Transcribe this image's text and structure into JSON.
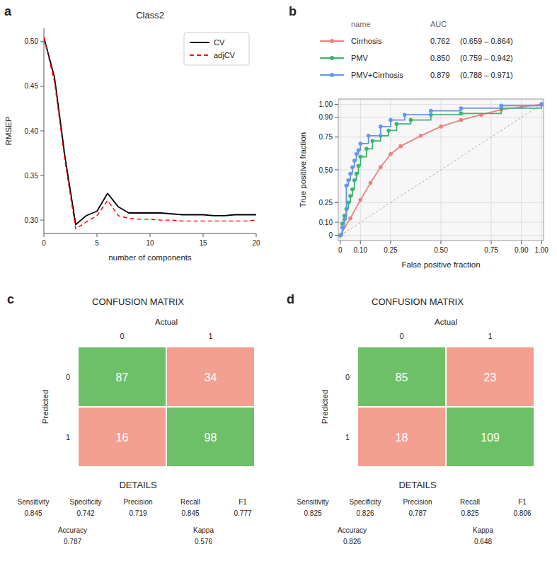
{
  "chart_data": [
    {
      "type": "line",
      "title": "Class2",
      "annotations": [
        "a"
      ],
      "x_label": "number of components",
      "y_label": "RMSEP",
      "x": [
        0,
        1,
        2,
        3,
        4,
        5,
        6,
        7,
        8,
        9,
        10,
        11,
        12,
        13,
        14,
        15,
        16,
        17,
        18,
        19,
        20
      ],
      "series": [
        {
          "name": "CV",
          "color": "black",
          "line_style": "solid",
          "values": [
            0.505,
            0.46,
            0.37,
            0.295,
            0.305,
            0.31,
            0.33,
            0.315,
            0.308,
            0.308,
            0.308,
            0.308,
            0.307,
            0.306,
            0.306,
            0.306,
            0.305,
            0.305,
            0.306,
            0.306,
            0.306
          ]
        },
        {
          "name": "adjCV",
          "color": "red",
          "line_style": "dashed",
          "values": [
            0.505,
            0.455,
            0.365,
            0.29,
            0.298,
            0.305,
            0.322,
            0.305,
            0.302,
            0.301,
            0.301,
            0.3,
            0.3,
            0.299,
            0.299,
            0.299,
            0.299,
            0.299,
            0.299,
            0.299,
            0.3
          ]
        }
      ],
      "xlim": [
        0,
        20
      ],
      "xticks": [
        0,
        5,
        10,
        15,
        20
      ],
      "ylim": [
        0.285,
        0.515
      ],
      "yticks": [
        {
          "value": 0.3,
          "label": "0.30"
        },
        0.35,
        {
          "value": 0.4,
          "label": "0.40"
        },
        0.45,
        {
          "value": 0.5,
          "label": "0.50"
        }
      ],
      "grid": false,
      "legend": "upper-right"
    },
    {
      "type": "line",
      "annotations": [
        "b"
      ],
      "x_label": "False positive fraction",
      "y_label": "True positive fraction",
      "legend": "top",
      "legend_headers": [
        "name",
        "AUC"
      ],
      "series": [
        {
          "name": "Cirrhosis",
          "color": "#F08080",
          "line_style": "solid",
          "marker": "circle",
          "auc": "0.762",
          "ci": "(0.659 – 0.864)",
          "x": [
            0.0,
            0.05,
            0.1,
            0.15,
            0.2,
            0.25,
            0.3,
            0.4,
            0.5,
            0.6,
            0.7,
            0.8,
            0.9,
            1.0
          ],
          "values": [
            0.0,
            0.13,
            0.27,
            0.4,
            0.52,
            0.62,
            0.68,
            0.76,
            0.83,
            0.88,
            0.92,
            0.96,
            0.98,
            1.0
          ]
        },
        {
          "name": "PMV",
          "color": "#3CB371",
          "line_style": "steps",
          "marker": "circle",
          "auc": "0.850",
          "ci": "(0.759 – 0.942)",
          "x": [
            0.0,
            0.01,
            0.02,
            0.03,
            0.04,
            0.05,
            0.06,
            0.07,
            0.08,
            0.09,
            0.1,
            0.13,
            0.16,
            0.2,
            0.24,
            0.28,
            0.35,
            0.45,
            0.6,
            0.8,
            1.0
          ],
          "values": [
            0.0,
            0.09,
            0.15,
            0.2,
            0.25,
            0.3,
            0.35,
            0.42,
            0.47,
            0.53,
            0.6,
            0.66,
            0.72,
            0.76,
            0.8,
            0.85,
            0.88,
            0.92,
            0.93,
            0.97,
            1.0
          ]
        },
        {
          "name": "PMV+Cirrhosis",
          "color": "#6495ED",
          "line_style": "steps",
          "marker": "circle",
          "auc": "0.879",
          "ci": "(0.788 – 0.971)",
          "x": [
            0.0,
            0.01,
            0.02,
            0.03,
            0.04,
            0.05,
            0.06,
            0.07,
            0.08,
            0.09,
            0.1,
            0.14,
            0.2,
            0.25,
            0.32,
            0.45,
            0.6,
            0.8,
            1.0
          ],
          "values": [
            0.0,
            0.06,
            0.12,
            0.38,
            0.42,
            0.47,
            0.52,
            0.57,
            0.62,
            0.65,
            0.7,
            0.76,
            0.83,
            0.88,
            0.92,
            0.95,
            0.97,
            0.99,
            1.0
          ]
        }
      ],
      "reference_line": {
        "x": [
          0,
          1
        ],
        "values": [
          0,
          1
        ]
      },
      "xlim": [
        -0.01,
        1.01
      ],
      "xticks": [
        0,
        {
          "value": 0.1,
          "label": "0.10"
        },
        0.25,
        {
          "value": 0.5,
          "label": "0.50"
        },
        0.75,
        {
          "value": 0.9,
          "label": "0.90"
        },
        {
          "value": 1.0,
          "label": "1.00"
        }
      ],
      "ylim": [
        -0.04,
        1.04
      ],
      "yticks": [
        0,
        {
          "value": 0.1,
          "label": "0.10"
        },
        0.25,
        {
          "value": 0.5,
          "label": "0.50"
        },
        0.75,
        {
          "value": 0.9,
          "label": "0.90"
        },
        {
          "value": 1.0,
          "label": "1.00"
        }
      ],
      "grid": true
    },
    {
      "type": "confusion_matrix",
      "title": "CONFUSION MATRIX",
      "annotations": [
        "c"
      ],
      "x_label": "Actual",
      "y_label": "Predicted",
      "x_categories": [
        "0",
        "1"
      ],
      "y_categories": [
        "0",
        "1"
      ],
      "cells": [
        [
          87,
          34
        ],
        [
          16,
          98
        ]
      ],
      "colors": [
        [
          "#6DC067",
          "#F4A090"
        ],
        [
          "#F4A090",
          "#6DC067"
        ]
      ],
      "details_title": "DETAILS",
      "metric_rows": [
        [
          {
            "name": "Sensitivity",
            "value": 0.845
          },
          {
            "name": "Specificity",
            "value": 0.742
          },
          {
            "name": "Precision",
            "value": 0.719
          },
          {
            "name": "Recall",
            "value": 0.845
          },
          {
            "name": "F1",
            "value": 0.777
          }
        ],
        [
          {
            "name": "Accuracy",
            "value": 0.787
          },
          {
            "name": "Kappa",
            "value": 0.576
          }
        ]
      ]
    },
    {
      "type": "confusion_matrix",
      "title": "CONFUSION MATRIX",
      "annotations": [
        "d"
      ],
      "x_label": "Actual",
      "y_label": "Predicted",
      "x_categories": [
        "0",
        "1"
      ],
      "y_categories": [
        "0",
        "1"
      ],
      "cells": [
        [
          85,
          23
        ],
        [
          18,
          109
        ]
      ],
      "colors": [
        [
          "#6DC067",
          "#F4A090"
        ],
        [
          "#F4A090",
          "#6DC067"
        ]
      ],
      "details_title": "DETAILS",
      "metric_rows": [
        [
          {
            "name": "Sensitivity",
            "value": 0.825
          },
          {
            "name": "Specificity",
            "value": 0.826
          },
          {
            "name": "Precision",
            "value": 0.787
          },
          {
            "name": "Recall",
            "value": 0.825
          },
          {
            "name": "F1",
            "value": 0.806
          }
        ],
        [
          {
            "name": "Accuracy",
            "value": 0.826
          },
          {
            "name": "Kappa",
            "value": 0.648
          }
        ]
      ]
    }
  ]
}
